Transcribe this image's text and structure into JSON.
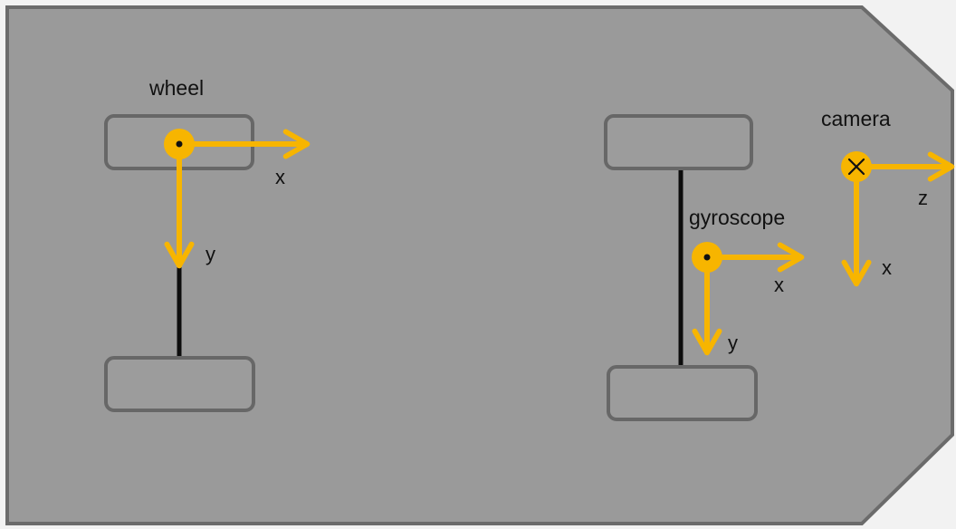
{
  "colors": {
    "background": "#f2f2f2",
    "body_fill": "#9a9a9a",
    "body_stroke": "#6b6b6b",
    "wheel_fill": "#9c9c9c",
    "wheel_stroke": "#676767",
    "axle": "#0d0d0d",
    "axis_arrow": "#f7b500",
    "origin_marker": "#f7b500",
    "text": "#111111"
  },
  "frames": {
    "wheel": {
      "label": "wheel",
      "origin_marker": "dot",
      "axis_horizontal": "x",
      "axis_vertical": "y"
    },
    "gyroscope": {
      "label": "gyroscope",
      "origin_marker": "dot",
      "axis_horizontal": "x",
      "axis_vertical": "y"
    },
    "camera": {
      "label": "camera",
      "origin_marker": "cross",
      "axis_horizontal": "z",
      "axis_vertical": "x"
    }
  }
}
